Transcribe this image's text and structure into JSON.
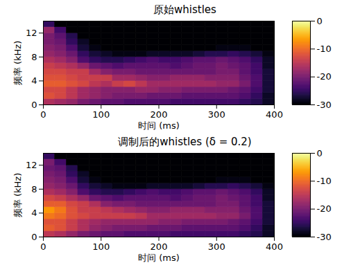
{
  "chart_data": [
    {
      "type": "heatmap",
      "title": "原始whistles",
      "x_label": "时间 (ms)",
      "y_label": "频率 (kHz)",
      "xlim": [
        0,
        400
      ],
      "xticks": [
        0,
        100,
        200,
        300,
        400
      ],
      "ylim": [
        0,
        14
      ],
      "yticks": [
        0,
        4,
        8,
        12
      ],
      "color": "inferno",
      "x_bins": [
        0,
        20,
        40,
        60,
        80,
        100,
        120,
        140,
        160,
        180,
        200,
        220,
        240,
        260,
        280,
        300,
        320,
        340,
        360,
        380,
        400
      ],
      "y_bins": [
        0,
        1,
        2,
        3,
        4,
        5,
        6,
        7,
        8,
        9,
        10,
        11,
        12,
        13,
        14
      ],
      "values": [
        [
          -16,
          -17,
          -18,
          -20,
          -21,
          -22,
          -22,
          -23,
          -23,
          -23,
          -23,
          -24,
          -24,
          -24,
          -24,
          -24,
          -24,
          -25,
          -26,
          -28
        ],
        [
          -12,
          -13,
          -15,
          -17,
          -18,
          -19,
          -20,
          -20,
          -20,
          -21,
          -21,
          -21,
          -22,
          -22,
          -22,
          -22,
          -22,
          -23,
          -25,
          -28
        ],
        [
          -13,
          -13,
          -15,
          -17,
          -18,
          -19,
          -19,
          -19,
          -18,
          -18,
          -19,
          -19,
          -20,
          -20,
          -20,
          -20,
          -21,
          -22,
          -24,
          -27
        ],
        [
          -11,
          -11,
          -12,
          -13,
          -15,
          -16,
          -14,
          -13,
          -15,
          -17,
          -17,
          -17,
          -17,
          -17,
          -17,
          -18,
          -18,
          -20,
          -23,
          -27
        ],
        [
          -12,
          -12,
          -13,
          -14,
          -14,
          -14,
          -17,
          -17,
          -18,
          -19,
          -19,
          -18,
          -18,
          -18,
          -19,
          -19,
          -19,
          -21,
          -23,
          -27
        ],
        [
          -13,
          -13,
          -14,
          -14,
          -17,
          -19,
          -20,
          -20,
          -21,
          -21,
          -21,
          -21,
          -21,
          -21,
          -21,
          -20,
          -20,
          -22,
          -24,
          -27
        ],
        [
          -14,
          -15,
          -16,
          -18,
          -21,
          -22,
          -23,
          -22,
          -22,
          -22,
          -22,
          -23,
          -22,
          -21,
          -21,
          -20,
          -21,
          -22,
          -24,
          -28
        ],
        [
          -16,
          -17,
          -19,
          -23,
          -25,
          -26,
          -26,
          -25,
          -24,
          -23,
          -24,
          -24,
          -23,
          -22,
          -22,
          -21,
          -22,
          -23,
          -25,
          -28
        ],
        [
          -18,
          -19,
          -21,
          -25,
          -27,
          -28,
          -29,
          -29,
          -29,
          -28,
          -28,
          -28,
          -28,
          -27,
          -26,
          -26,
          -25,
          -26,
          -27,
          -29
        ],
        [
          -19,
          -20,
          -23,
          -27,
          -29,
          -30,
          -30,
          -30,
          -30,
          -30,
          -30,
          -30,
          -30,
          -30,
          -30,
          -29,
          -29,
          -29,
          -30,
          -30
        ],
        [
          -20,
          -21,
          -25,
          -28,
          -30,
          -30,
          -30,
          -30,
          -30,
          -30,
          -30,
          -30,
          -30,
          -30,
          -30,
          -30,
          -30,
          -30,
          -30,
          -30
        ],
        [
          -20,
          -22,
          -26,
          -30,
          -30,
          -30,
          -30,
          -30,
          -30,
          -30,
          -30,
          -30,
          -30,
          -30,
          -30,
          -30,
          -30,
          -30,
          -30,
          -30
        ],
        [
          -18,
          -24,
          -30,
          -30,
          -30,
          -30,
          -30,
          -30,
          -30,
          -30,
          -30,
          -30,
          -30,
          -30,
          -30,
          -30,
          -30,
          -30,
          -30,
          -30
        ],
        [
          -25,
          -30,
          -30,
          -30,
          -30,
          -30,
          -30,
          -30,
          -30,
          -30,
          -30,
          -30,
          -30,
          -30,
          -30,
          -30,
          -30,
          -30,
          -30,
          -30
        ]
      ],
      "colorbar": {
        "range": [
          -30,
          0
        ],
        "ticks": [
          0,
          -10,
          -20,
          -30
        ]
      }
    },
    {
      "type": "heatmap",
      "title": "调制后的whistles (δ = 0.2)",
      "x_label": "时间 (ms)",
      "y_label": "频率 (kHz)",
      "xlim": [
        0,
        400
      ],
      "xticks": [
        0,
        100,
        200,
        300,
        400
      ],
      "ylim": [
        0,
        14
      ],
      "yticks": [
        0,
        4,
        8,
        12
      ],
      "color": "inferno",
      "x_bins": [
        0,
        20,
        40,
        60,
        80,
        100,
        120,
        140,
        160,
        180,
        200,
        220,
        240,
        260,
        280,
        300,
        320,
        340,
        360,
        380,
        400
      ],
      "y_bins": [
        0,
        1,
        2,
        3,
        4,
        5,
        6,
        7,
        8,
        9,
        10,
        11,
        12,
        13,
        14
      ],
      "values": [
        [
          -15,
          -16,
          -18,
          -20,
          -21,
          -22,
          -22,
          -23,
          -23,
          -23,
          -23,
          -24,
          -24,
          -24,
          -24,
          -24,
          -24,
          -25,
          -26,
          -28
        ],
        [
          -11,
          -12,
          -14,
          -16,
          -18,
          -19,
          -20,
          -20,
          -20,
          -21,
          -21,
          -21,
          -22,
          -22,
          -22,
          -22,
          -22,
          -23,
          -25,
          -28
        ],
        [
          -12,
          -12,
          -14,
          -16,
          -17,
          -18,
          -18,
          -18,
          -18,
          -18,
          -19,
          -19,
          -20,
          -20,
          -20,
          -20,
          -21,
          -22,
          -24,
          -27
        ],
        [
          -9,
          -10,
          -12,
          -13,
          -14,
          -14,
          -14,
          -14,
          -15,
          -17,
          -17,
          -17,
          -17,
          -17,
          -17,
          -18,
          -18,
          -20,
          -23,
          -27
        ],
        [
          -7,
          -9,
          -12,
          -14,
          -14,
          -15,
          -16,
          -17,
          -18,
          -19,
          -19,
          -18,
          -18,
          -18,
          -19,
          -19,
          -19,
          -21,
          -23,
          -27
        ],
        [
          -11,
          -11,
          -13,
          -14,
          -16,
          -19,
          -20,
          -20,
          -21,
          -21,
          -21,
          -21,
          -21,
          -21,
          -21,
          -20,
          -20,
          -22,
          -24,
          -27
        ],
        [
          -13,
          -14,
          -16,
          -18,
          -21,
          -22,
          -23,
          -22,
          -22,
          -22,
          -22,
          -23,
          -22,
          -21,
          -21,
          -20,
          -21,
          -22,
          -24,
          -28
        ],
        [
          -16,
          -17,
          -19,
          -23,
          -25,
          -26,
          -26,
          -25,
          -24,
          -23,
          -24,
          -24,
          -23,
          -22,
          -22,
          -21,
          -22,
          -23,
          -25,
          -28
        ],
        [
          -18,
          -19,
          -21,
          -25,
          -27,
          -28,
          -29,
          -29,
          -29,
          -28,
          -28,
          -28,
          -28,
          -27,
          -26,
          -26,
          -25,
          -26,
          -27,
          -29
        ],
        [
          -19,
          -20,
          -23,
          -27,
          -29,
          -30,
          -30,
          -30,
          -30,
          -30,
          -30,
          -30,
          -30,
          -30,
          -30,
          -29,
          -29,
          -29,
          -30,
          -30
        ],
        [
          -20,
          -21,
          -25,
          -28,
          -30,
          -30,
          -30,
          -30,
          -30,
          -30,
          -30,
          -30,
          -30,
          -30,
          -30,
          -30,
          -30,
          -30,
          -30,
          -30
        ],
        [
          -21,
          -22,
          -26,
          -30,
          -30,
          -30,
          -30,
          -30,
          -30,
          -30,
          -30,
          -30,
          -30,
          -30,
          -30,
          -30,
          -30,
          -30,
          -30,
          -30
        ],
        [
          -20,
          -24,
          -30,
          -30,
          -30,
          -30,
          -30,
          -30,
          -30,
          -30,
          -30,
          -30,
          -30,
          -30,
          -30,
          -30,
          -30,
          -30,
          -30,
          -30
        ],
        [
          -25,
          -30,
          -30,
          -30,
          -30,
          -30,
          -30,
          -30,
          -30,
          -30,
          -30,
          -30,
          -30,
          -30,
          -30,
          -30,
          -30,
          -30,
          -30,
          -30
        ]
      ],
      "colorbar": {
        "range": [
          -30,
          0
        ],
        "ticks": [
          0,
          -10,
          -20,
          -30
        ]
      }
    }
  ]
}
